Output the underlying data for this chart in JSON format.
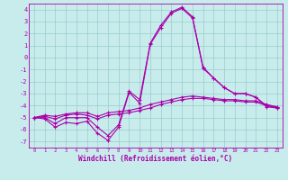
{
  "xlabel": "Windchill (Refroidissement éolien,°C)",
  "bg_color": "#c8ecec",
  "line_color": "#aa00aa",
  "grid_color": "#99cccc",
  "x_values": [
    0,
    1,
    2,
    3,
    4,
    5,
    6,
    7,
    8,
    9,
    10,
    11,
    12,
    13,
    14,
    15,
    16,
    17,
    18,
    19,
    20,
    21,
    22,
    23
  ],
  "series1": [
    -5.0,
    -5.1,
    -5.8,
    -5.4,
    -5.5,
    -5.3,
    -6.3,
    -6.9,
    -5.8,
    -2.9,
    -3.8,
    1.1,
    2.5,
    3.7,
    4.1,
    3.3,
    -0.9,
    -1.7,
    -2.5,
    -3.0,
    -3.0,
    -3.3,
    -4.1,
    -4.2
  ],
  "series2": [
    -5.0,
    -5.0,
    -5.5,
    -5.0,
    -5.0,
    -5.0,
    -5.8,
    -6.5,
    -5.6,
    -2.8,
    -3.5,
    1.2,
    2.7,
    3.8,
    4.2,
    3.4,
    -0.8,
    -1.7,
    -2.5,
    -3.0,
    -3.0,
    -3.3,
    -4.0,
    -4.1
  ],
  "series3": [
    -5.0,
    -4.9,
    -5.1,
    -4.8,
    -4.7,
    -4.8,
    -5.1,
    -4.8,
    -4.7,
    -4.6,
    -4.4,
    -4.2,
    -3.9,
    -3.7,
    -3.5,
    -3.4,
    -3.4,
    -3.5,
    -3.6,
    -3.6,
    -3.7,
    -3.7,
    -4.0,
    -4.2
  ],
  "series4": [
    -5.0,
    -4.8,
    -4.9,
    -4.7,
    -4.6,
    -4.6,
    -4.9,
    -4.6,
    -4.5,
    -4.4,
    -4.2,
    -3.9,
    -3.7,
    -3.5,
    -3.3,
    -3.2,
    -3.3,
    -3.4,
    -3.5,
    -3.5,
    -3.6,
    -3.6,
    -3.9,
    -4.1
  ],
  "ylim": [
    -7.5,
    4.5
  ],
  "xlim": [
    -0.5,
    23.5
  ],
  "yticks": [
    -7,
    -6,
    -5,
    -4,
    -3,
    -2,
    -1,
    0,
    1,
    2,
    3,
    4
  ],
  "xticks": [
    0,
    1,
    2,
    3,
    4,
    5,
    6,
    7,
    8,
    9,
    10,
    11,
    12,
    13,
    14,
    15,
    16,
    17,
    18,
    19,
    20,
    21,
    22,
    23
  ]
}
